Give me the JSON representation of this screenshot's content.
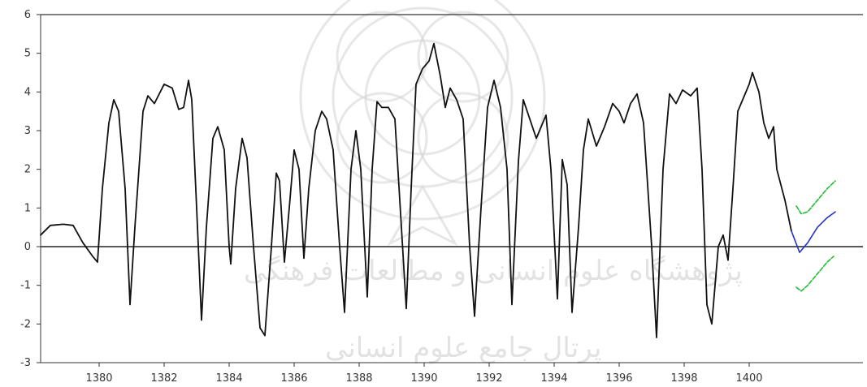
{
  "chart_data": {
    "type": "line",
    "title": "",
    "xlabel": "",
    "ylabel": "",
    "xlim": [
      1378.2,
      1403.5
    ],
    "ylim": [
      -3,
      6
    ],
    "xticks": [
      1380,
      1382,
      1384,
      1386,
      1388,
      1390,
      1392,
      1394,
      1396,
      1398,
      1400
    ],
    "yticks": [
      -3,
      -2,
      -1,
      0,
      1,
      2,
      3,
      4,
      5,
      6
    ],
    "grid": false,
    "series": [
      {
        "color": "#111111",
        "points": [
          [
            1378.2,
            0.3
          ],
          [
            1378.5,
            0.55
          ],
          [
            1378.9,
            0.58
          ],
          [
            1379.2,
            0.55
          ],
          [
            1379.5,
            0.1
          ],
          [
            1379.8,
            -0.25
          ],
          [
            1379.95,
            -0.4
          ],
          [
            1380.1,
            1.5
          ],
          [
            1380.3,
            3.2
          ],
          [
            1380.45,
            3.8
          ],
          [
            1380.6,
            3.5
          ],
          [
            1380.8,
            1.5
          ],
          [
            1380.95,
            -1.5
          ],
          [
            1381.1,
            0.5
          ],
          [
            1381.35,
            3.5
          ],
          [
            1381.5,
            3.9
          ],
          [
            1381.7,
            3.7
          ],
          [
            1382.0,
            4.2
          ],
          [
            1382.25,
            4.1
          ],
          [
            1382.45,
            3.55
          ],
          [
            1382.6,
            3.6
          ],
          [
            1382.75,
            4.3
          ],
          [
            1382.85,
            3.8
          ],
          [
            1383.0,
            1.0
          ],
          [
            1383.15,
            -1.9
          ],
          [
            1383.3,
            0.5
          ],
          [
            1383.5,
            2.8
          ],
          [
            1383.65,
            3.1
          ],
          [
            1383.85,
            2.5
          ],
          [
            1384.0,
            0.0
          ],
          [
            1384.05,
            -0.45
          ],
          [
            1384.2,
            1.5
          ],
          [
            1384.4,
            2.8
          ],
          [
            1384.55,
            2.3
          ],
          [
            1384.75,
            0.0
          ],
          [
            1384.95,
            -2.1
          ],
          [
            1385.1,
            -2.3
          ],
          [
            1385.3,
            0.0
          ],
          [
            1385.45,
            1.9
          ],
          [
            1385.55,
            1.7
          ],
          [
            1385.7,
            -0.4
          ],
          [
            1385.85,
            1.0
          ],
          [
            1386.0,
            2.5
          ],
          [
            1386.15,
            2.0
          ],
          [
            1386.3,
            -0.3
          ],
          [
            1386.45,
            1.5
          ],
          [
            1386.65,
            3.0
          ],
          [
            1386.85,
            3.5
          ],
          [
            1387.0,
            3.3
          ],
          [
            1387.2,
            2.5
          ],
          [
            1387.4,
            0.0
          ],
          [
            1387.55,
            -1.7
          ],
          [
            1387.75,
            2.0
          ],
          [
            1387.9,
            3.0
          ],
          [
            1388.05,
            2.0
          ],
          [
            1388.25,
            -1.3
          ],
          [
            1388.4,
            2.0
          ],
          [
            1388.55,
            3.75
          ],
          [
            1388.7,
            3.6
          ],
          [
            1388.9,
            3.6
          ],
          [
            1389.1,
            3.3
          ],
          [
            1389.3,
            0.5
          ],
          [
            1389.45,
            -1.6
          ],
          [
            1389.6,
            1.5
          ],
          [
            1389.75,
            4.2
          ],
          [
            1389.95,
            4.6
          ],
          [
            1390.15,
            4.8
          ],
          [
            1390.3,
            5.25
          ],
          [
            1390.5,
            4.4
          ],
          [
            1390.65,
            3.6
          ],
          [
            1390.8,
            4.1
          ],
          [
            1391.0,
            3.8
          ],
          [
            1391.2,
            3.3
          ],
          [
            1391.4,
            0.0
          ],
          [
            1391.55,
            -1.8
          ],
          [
            1391.75,
            1.0
          ],
          [
            1391.95,
            3.6
          ],
          [
            1392.15,
            4.3
          ],
          [
            1392.35,
            3.6
          ],
          [
            1392.55,
            2.0
          ],
          [
            1392.7,
            -1.5
          ],
          [
            1392.9,
            2.2
          ],
          [
            1393.05,
            3.8
          ],
          [
            1393.25,
            3.3
          ],
          [
            1393.45,
            2.8
          ],
          [
            1393.6,
            3.1
          ],
          [
            1393.75,
            3.4
          ],
          [
            1393.9,
            2.0
          ],
          [
            1394.1,
            -1.35
          ],
          [
            1394.25,
            2.25
          ],
          [
            1394.4,
            1.6
          ],
          [
            1394.55,
            -1.7
          ],
          [
            1394.75,
            0.5
          ],
          [
            1394.9,
            2.5
          ],
          [
            1395.05,
            3.3
          ],
          [
            1395.3,
            2.6
          ],
          [
            1395.55,
            3.1
          ],
          [
            1395.8,
            3.7
          ],
          [
            1396.0,
            3.5
          ],
          [
            1396.15,
            3.2
          ],
          [
            1396.35,
            3.7
          ],
          [
            1396.55,
            3.95
          ],
          [
            1396.75,
            3.2
          ],
          [
            1397.0,
            0.0
          ],
          [
            1397.15,
            -2.35
          ],
          [
            1397.35,
            2.0
          ],
          [
            1397.55,
            3.95
          ],
          [
            1397.75,
            3.7
          ],
          [
            1397.95,
            4.05
          ],
          [
            1398.2,
            3.9
          ],
          [
            1398.4,
            4.1
          ],
          [
            1398.55,
            2.0
          ],
          [
            1398.7,
            -1.5
          ],
          [
            1398.85,
            -2.0
          ],
          [
            1399.05,
            0.0
          ],
          [
            1399.2,
            0.3
          ],
          [
            1399.35,
            -0.35
          ],
          [
            1399.5,
            1.5
          ],
          [
            1399.65,
            3.5
          ],
          [
            1399.85,
            3.9
          ],
          [
            1400.0,
            4.2
          ],
          [
            1400.1,
            4.5
          ],
          [
            1400.3,
            4.0
          ],
          [
            1400.45,
            3.2
          ],
          [
            1400.6,
            2.8
          ],
          [
            1400.75,
            3.1
          ],
          [
            1400.85,
            2.0
          ],
          [
            1401.1,
            1.2
          ],
          [
            1401.3,
            0.4
          ]
        ]
      },
      {
        "color": "#2233cc",
        "points": [
          [
            1401.3,
            0.4
          ],
          [
            1401.55,
            -0.15
          ],
          [
            1401.8,
            0.1
          ],
          [
            1402.1,
            0.5
          ],
          [
            1402.4,
            0.75
          ],
          [
            1402.65,
            0.9
          ]
        ]
      },
      {
        "color": "#22bb33",
        "points": [
          [
            1401.45,
            1.05
          ],
          [
            1401.6,
            0.85
          ],
          [
            1401.8,
            0.9
          ],
          [
            1402.1,
            1.2
          ],
          [
            1402.4,
            1.5
          ],
          [
            1402.65,
            1.7
          ]
        ]
      },
      {
        "color": "#22bb33",
        "points": [
          [
            1401.45,
            -1.05
          ],
          [
            1401.6,
            -1.15
          ],
          [
            1401.8,
            -1.0
          ],
          [
            1402.1,
            -0.7
          ],
          [
            1402.4,
            -0.4
          ],
          [
            1402.6,
            -0.25
          ]
        ]
      }
    ]
  }
}
